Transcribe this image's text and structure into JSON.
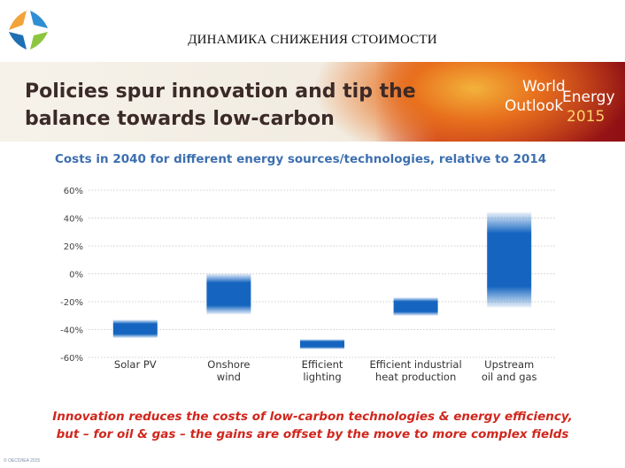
{
  "header": {
    "slide_title": "ДИНАМИКА СНИЖЕНИЯ СТОИМОСТИ"
  },
  "banner": {
    "line1": "Policies spur innovation and tip the",
    "line2": "balance towards low-carbon",
    "logo": {
      "w1": "World",
      "w2": "Energy",
      "w3": "Outlook",
      "w4": "2015"
    }
  },
  "colors": {
    "bar": "#1565c0",
    "title_blue": "#3d6fb0",
    "footer_red": "#d0271d",
    "grid": "#bfbfbf"
  },
  "chart_data": {
    "type": "floating-bar",
    "title": "Costs in 2040 for different energy sources/technologies, relative to 2014",
    "categories": [
      [
        "Solar PV"
      ],
      [
        "Onshore",
        "wind"
      ],
      [
        "Efficient",
        "lighting"
      ],
      [
        "Efficient industrial",
        "heat production"
      ],
      [
        "Upstream",
        "oil and gas"
      ]
    ],
    "ranges": [
      {
        "low": -46,
        "high": -33
      },
      {
        "low": -29,
        "high": 0
      },
      {
        "low": -54,
        "high": -47
      },
      {
        "low": -30,
        "high": -17
      },
      {
        "low": -24,
        "high": 44
      }
    ],
    "y_ticks": [
      "60%",
      "40%",
      "20%",
      "0%",
      "-20%",
      "-40%",
      "-60%"
    ],
    "ylim": [
      -60,
      60
    ],
    "grid": true
  },
  "footer": {
    "line1": "Innovation reduces the costs of low-carbon technologies & energy efficiency,",
    "line2": "but – for oil & gas – the gains are offset by the move to more complex fields"
  },
  "footnote": "© OECD/IEA 2015"
}
